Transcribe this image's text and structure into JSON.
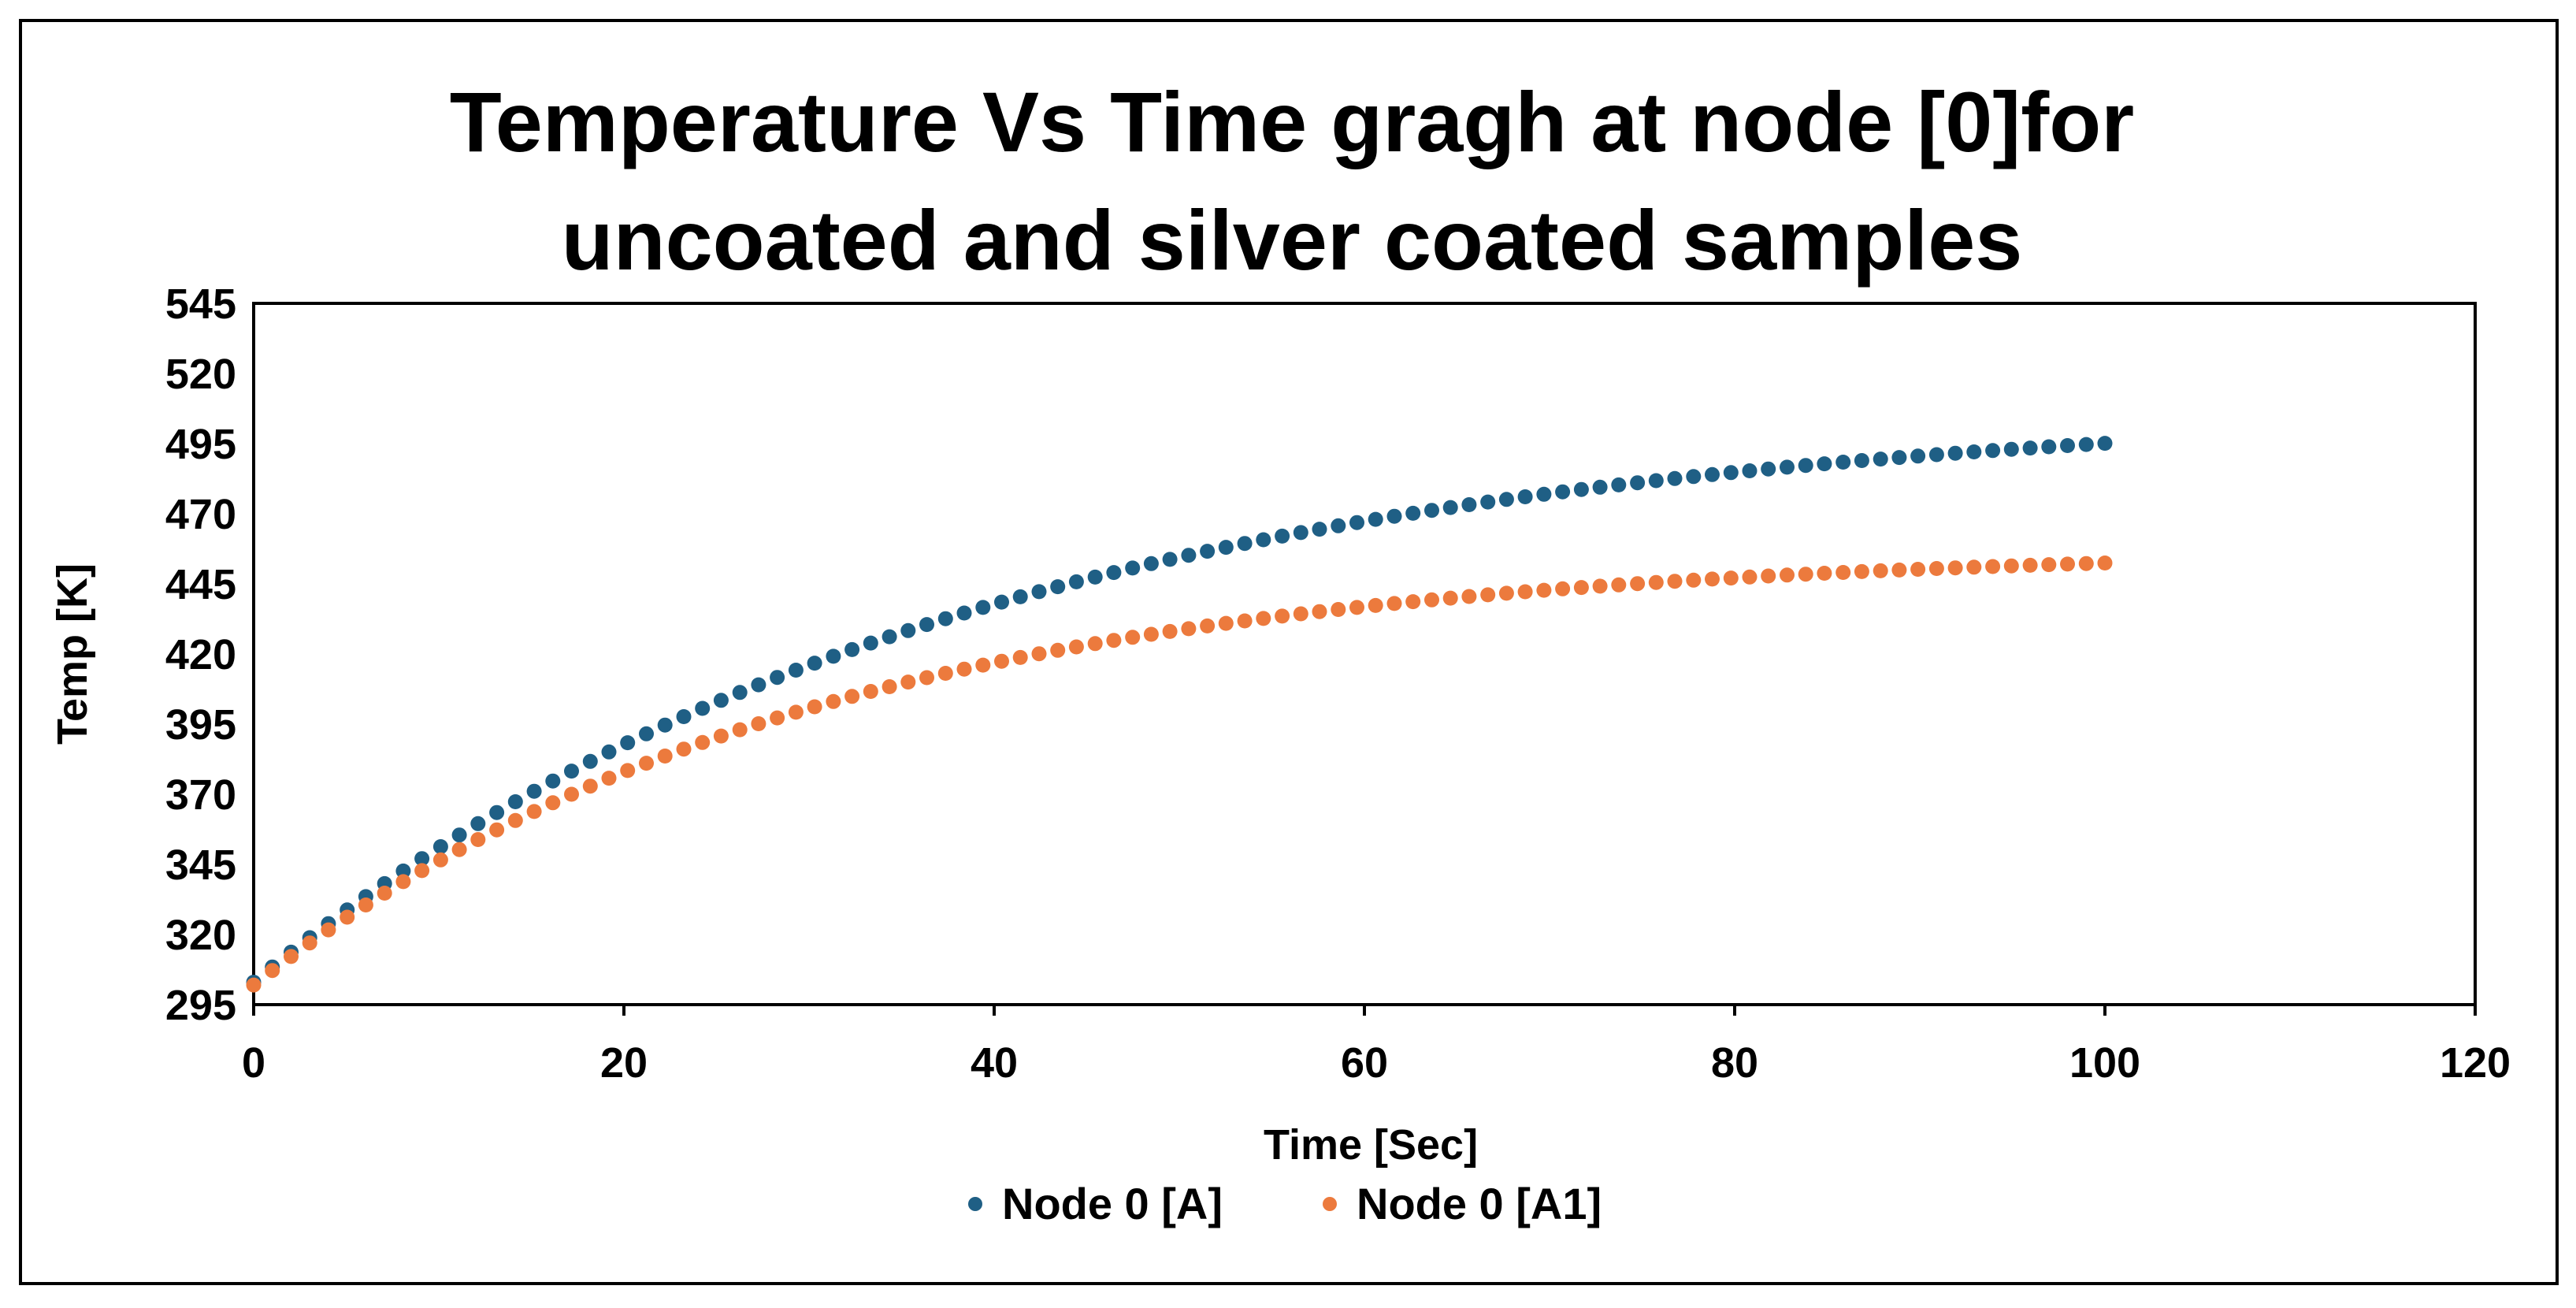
{
  "chart_data": {
    "type": "scatter",
    "title_lines": [
      "Temperature Vs Time gragh at node [0]for",
      "uncoated and silver coated samples"
    ],
    "xlabel": "Time [Sec]",
    "ylabel": "Temp [K]",
    "xlim": [
      0,
      120
    ],
    "ylim": [
      295,
      545
    ],
    "xticks": [
      "0",
      "20",
      "40",
      "60",
      "80",
      "100",
      "120"
    ],
    "yticks": [
      "545",
      "520",
      "495",
      "470",
      "445",
      "420",
      "395",
      "370",
      "345",
      "320",
      "295"
    ],
    "grid": false,
    "legend_position": "bottom-center",
    "series": [
      {
        "name": "Node 0 [A]",
        "color": "#1f5f85",
        "model": {
          "x_start": 0,
          "x_end": 100,
          "points": 100,
          "t0": 303,
          "t_inf": 510,
          "tau": 38
        }
      },
      {
        "name": "Node 0 [A1]",
        "color": "#ec7a3d",
        "model": {
          "x_start": 0,
          "x_end": 100,
          "points": 100,
          "t0": 302,
          "t_inf": 458,
          "tau": 30
        }
      }
    ]
  }
}
